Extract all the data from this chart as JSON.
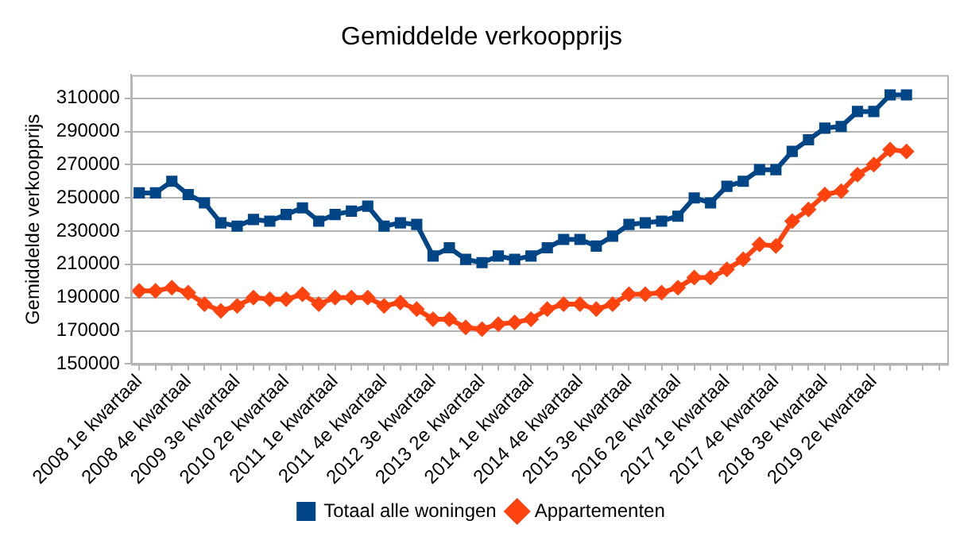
{
  "chart_data": {
    "type": "line",
    "title": "Gemiddelde verkoopprijs",
    "ylabel": "Gemiddelde verkoopprijs",
    "categories": [
      "2008 1e kwartaal",
      null,
      null,
      "2008 4e kwartaal",
      null,
      null,
      "2009 3e kwartaal",
      null,
      null,
      "2010 2e kwartaal",
      null,
      null,
      "2011 1e kwartaal",
      null,
      null,
      "2011 4e kwartaal",
      null,
      null,
      "2012 3e kwartaal",
      null,
      null,
      "2013 2e kwartaal",
      null,
      null,
      "2014 1e kwartaal",
      null,
      null,
      "2014 4e kwartaal",
      null,
      null,
      "2015 3e kwartaal",
      null,
      null,
      "2016 2e kwartaal",
      null,
      null,
      "2017 1e kwartaal",
      null,
      null,
      "2017 4e kwartaal",
      null,
      null,
      "2018 3e kwartaal",
      null,
      null,
      "2019 2e kwartaal",
      null,
      null,
      null,
      null
    ],
    "series": [
      {
        "name": "Totaal alle woningen",
        "color": "#004586",
        "marker": "square",
        "values": [
          253000,
          253000,
          260000,
          252000,
          247000,
          235000,
          233000,
          237000,
          236000,
          240000,
          244000,
          236000,
          240000,
          242000,
          245000,
          233000,
          235000,
          234000,
          215000,
          220000,
          213000,
          211000,
          215000,
          213000,
          215000,
          220000,
          225000,
          225000,
          221000,
          227000,
          234000,
          235000,
          236000,
          239000,
          250000,
          247000,
          257000,
          260000,
          267000,
          267000,
          278000,
          285000,
          292000,
          293000,
          302000,
          302000,
          312000,
          312000,
          null,
          null
        ]
      },
      {
        "name": "Appartementen",
        "color": "#ff420e",
        "marker": "diamond",
        "values": [
          194000,
          194000,
          196000,
          193000,
          186000,
          182000,
          185000,
          190000,
          189000,
          189000,
          192000,
          186000,
          190000,
          190000,
          190000,
          185000,
          187000,
          183000,
          177000,
          177000,
          172000,
          171000,
          174000,
          175000,
          177000,
          183000,
          186000,
          186000,
          183000,
          186000,
          192000,
          192000,
          193000,
          196000,
          202000,
          202000,
          207000,
          213000,
          222000,
          221000,
          236000,
          243000,
          252000,
          254000,
          264000,
          270000,
          279000,
          278000,
          null,
          null
        ]
      }
    ],
    "ylim": [
      150000,
      324000
    ],
    "yticks": [
      150000,
      170000,
      190000,
      210000,
      230000,
      250000,
      270000,
      290000,
      310000
    ],
    "grid": "y",
    "legend": "bottom"
  }
}
